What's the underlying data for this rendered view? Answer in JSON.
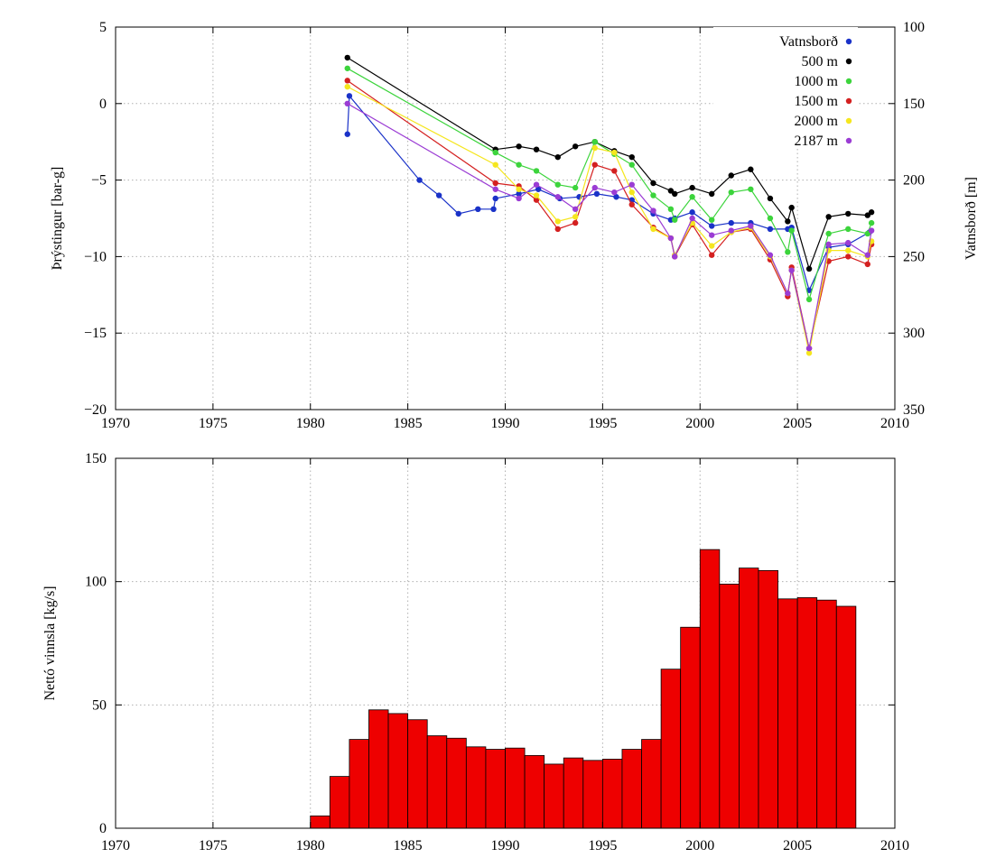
{
  "chart_data": [
    {
      "type": "line",
      "title": "",
      "xlabel": "",
      "ylabel": "Þrýstingur [bar-g]",
      "y2label": "Vatnsborð [m]",
      "xlim": [
        1970,
        2010
      ],
      "ylim": [
        -20,
        5
      ],
      "y2lim": [
        350,
        100
      ],
      "y2_reversed": true,
      "grid": true,
      "legend_position": "top-right",
      "x_ticks": [
        "1970",
        "1975",
        "1980",
        "1985",
        "1990",
        "1995",
        "2000",
        "2005",
        "2010"
      ],
      "y_ticks": [
        "5",
        "0",
        "−5",
        "−10",
        "−15",
        "−20"
      ],
      "y2_ticks": [
        "100",
        "150",
        "200",
        "250",
        "300",
        "350"
      ],
      "series": [
        {
          "name": "Vatnsborð",
          "axis": "y2",
          "color": "#1a32c8",
          "points": [
            [
              1981.9,
              170
            ],
            [
              1982.0,
              145
            ],
            [
              1985.6,
              200
            ],
            [
              1986.6,
              210
            ],
            [
              1987.6,
              222
            ],
            [
              1988.6,
              219
            ],
            [
              1989.4,
              219
            ],
            [
              1989.5,
              212
            ],
            [
              1990.7,
              209
            ],
            [
              1991.7,
              206
            ],
            [
              1992.8,
              212
            ],
            [
              1993.8,
              211
            ],
            [
              1994.7,
              209
            ],
            [
              1995.7,
              211
            ],
            [
              1996.5,
              213
            ],
            [
              1997.6,
              222
            ],
            [
              1998.5,
              226
            ],
            [
              1998.7,
              225
            ],
            [
              1999.6,
              221
            ],
            [
              2000.6,
              230
            ],
            [
              2001.6,
              228
            ],
            [
              2002.6,
              228
            ],
            [
              2003.6,
              232
            ],
            [
              2004.5,
              232
            ],
            [
              2004.7,
              231
            ],
            [
              2005.6,
              272
            ],
            [
              2006.6,
              244
            ],
            [
              2007.6,
              242
            ],
            [
              2008.7,
              234
            ]
          ]
        },
        {
          "name": "500 m",
          "axis": "y",
          "color": "#000000",
          "points": [
            [
              1981.9,
              3.0
            ],
            [
              1989.5,
              -3.0
            ],
            [
              1990.7,
              -2.8
            ],
            [
              1991.6,
              -3.0
            ],
            [
              1992.7,
              -3.5
            ],
            [
              1993.6,
              -2.8
            ],
            [
              1994.6,
              -2.5
            ],
            [
              1995.6,
              -3.1
            ],
            [
              1996.5,
              -3.5
            ],
            [
              1997.6,
              -5.2
            ],
            [
              1998.5,
              -5.7
            ],
            [
              1998.7,
              -5.9
            ],
            [
              1999.6,
              -5.5
            ],
            [
              2000.6,
              -5.9
            ],
            [
              2001.6,
              -4.7
            ],
            [
              2002.6,
              -4.3
            ],
            [
              2003.6,
              -6.2
            ],
            [
              2004.5,
              -7.7
            ],
            [
              2004.7,
              -6.8
            ],
            [
              2005.6,
              -10.8
            ],
            [
              2006.6,
              -7.4
            ],
            [
              2007.6,
              -7.2
            ],
            [
              2008.6,
              -7.3
            ],
            [
              2008.8,
              -7.1
            ]
          ]
        },
        {
          "name": "1000 m",
          "axis": "y",
          "color": "#3cd43c",
          "points": [
            [
              1981.9,
              2.3
            ],
            [
              1989.5,
              -3.2
            ],
            [
              1990.7,
              -4.0
            ],
            [
              1991.6,
              -4.4
            ],
            [
              1992.7,
              -5.3
            ],
            [
              1993.6,
              -5.5
            ],
            [
              1994.6,
              -2.5
            ],
            [
              1995.6,
              -3.3
            ],
            [
              1996.5,
              -4.0
            ],
            [
              1997.6,
              -6.0
            ],
            [
              1998.5,
              -6.9
            ],
            [
              1998.7,
              -7.6
            ],
            [
              1999.6,
              -6.1
            ],
            [
              2000.6,
              -7.6
            ],
            [
              2001.6,
              -5.8
            ],
            [
              2002.6,
              -5.6
            ],
            [
              2003.6,
              -7.5
            ],
            [
              2004.5,
              -9.7
            ],
            [
              2004.7,
              -8.3
            ],
            [
              2005.6,
              -12.8
            ],
            [
              2006.6,
              -8.5
            ],
            [
              2007.6,
              -8.2
            ],
            [
              2008.6,
              -8.5
            ],
            [
              2008.8,
              -7.8
            ]
          ]
        },
        {
          "name": "1500 m",
          "axis": "y",
          "color": "#d42020",
          "points": [
            [
              1981.9,
              1.5
            ],
            [
              1989.5,
              -5.2
            ],
            [
              1990.7,
              -5.4
            ],
            [
              1991.6,
              -6.3
            ],
            [
              1992.7,
              -8.2
            ],
            [
              1993.6,
              -7.8
            ],
            [
              1994.6,
              -4.0
            ],
            [
              1995.6,
              -4.4
            ],
            [
              1996.5,
              -6.6
            ],
            [
              1997.6,
              -8.1
            ],
            [
              1998.5,
              -8.8
            ],
            [
              1998.7,
              -10.0
            ],
            [
              1999.6,
              -7.9
            ],
            [
              2000.6,
              -9.9
            ],
            [
              2001.6,
              -8.4
            ],
            [
              2002.6,
              -8.2
            ],
            [
              2003.6,
              -10.2
            ],
            [
              2004.5,
              -12.6
            ],
            [
              2004.7,
              -10.7
            ],
            [
              2005.6,
              -16.0
            ],
            [
              2006.6,
              -10.3
            ],
            [
              2007.6,
              -10.0
            ],
            [
              2008.6,
              -10.5
            ],
            [
              2008.8,
              -9.2
            ]
          ]
        },
        {
          "name": "2000 m",
          "axis": "y",
          "color": "#f5e61e",
          "points": [
            [
              1981.9,
              1.1
            ],
            [
              1989.5,
              -4.0
            ],
            [
              1990.7,
              -5.6
            ],
            [
              1991.6,
              -6.0
            ],
            [
              1992.7,
              -7.7
            ],
            [
              1993.6,
              -7.4
            ],
            [
              1994.6,
              -2.9
            ],
            [
              1995.6,
              -3.2
            ],
            [
              1996.5,
              -5.8
            ],
            [
              1997.6,
              -8.2
            ],
            [
              1998.5,
              -8.8
            ],
            [
              1998.7,
              -9.9
            ],
            [
              1999.6,
              -7.8
            ],
            [
              2000.6,
              -9.3
            ],
            [
              2001.6,
              -8.4
            ],
            [
              2002.6,
              -8.1
            ],
            [
              2003.6,
              -10.0
            ],
            [
              2004.5,
              -12.4
            ],
            [
              2004.7,
              -10.9
            ],
            [
              2005.6,
              -16.3
            ],
            [
              2006.6,
              -9.6
            ],
            [
              2007.6,
              -9.6
            ],
            [
              2008.6,
              -10.0
            ],
            [
              2008.8,
              -9.0
            ]
          ]
        },
        {
          "name": "2187 m",
          "axis": "y",
          "color": "#9b3cd4",
          "points": [
            [
              1981.9,
              0.0
            ],
            [
              1989.5,
              -5.6
            ],
            [
              1990.7,
              -6.2
            ],
            [
              1991.6,
              -5.3
            ],
            [
              1992.7,
              -6.1
            ],
            [
              1993.6,
              -6.9
            ],
            [
              1994.6,
              -5.5
            ],
            [
              1995.6,
              -5.8
            ],
            [
              1996.5,
              -5.3
            ],
            [
              1997.6,
              -7.0
            ],
            [
              1998.5,
              -8.8
            ],
            [
              1998.7,
              -10.0
            ],
            [
              1999.6,
              -7.5
            ],
            [
              2000.6,
              -8.6
            ],
            [
              2001.6,
              -8.3
            ],
            [
              2002.6,
              -8.0
            ],
            [
              2003.6,
              -9.9
            ],
            [
              2004.5,
              -12.4
            ],
            [
              2004.7,
              -10.9
            ],
            [
              2005.6,
              -16.0
            ],
            [
              2006.6,
              -9.2
            ],
            [
              2007.6,
              -9.1
            ],
            [
              2008.6,
              -9.9
            ],
            [
              2008.8,
              -8.3
            ]
          ]
        }
      ]
    },
    {
      "type": "bar",
      "title": "",
      "xlabel": "",
      "ylabel": "Nettó vinnsla [kg/s]",
      "xlim": [
        1970,
        2010
      ],
      "ylim": [
        0,
        150
      ],
      "grid": true,
      "bar_color": "#ee0000",
      "x_ticks": [
        "1970",
        "1975",
        "1980",
        "1985",
        "1990",
        "1995",
        "2000",
        "2005",
        "2010"
      ],
      "y_ticks": [
        "0",
        "50",
        "100",
        "150"
      ],
      "bars": [
        {
          "start": 1980,
          "value": 5
        },
        {
          "start": 1981,
          "value": 21
        },
        {
          "start": 1982,
          "value": 36
        },
        {
          "start": 1983,
          "value": 48
        },
        {
          "start": 1984,
          "value": 46.5
        },
        {
          "start": 1985,
          "value": 44
        },
        {
          "start": 1986,
          "value": 37.5
        },
        {
          "start": 1987,
          "value": 36.5
        },
        {
          "start": 1988,
          "value": 33
        },
        {
          "start": 1989,
          "value": 32
        },
        {
          "start": 1990,
          "value": 32.5
        },
        {
          "start": 1991,
          "value": 29.5
        },
        {
          "start": 1992,
          "value": 26
        },
        {
          "start": 1993,
          "value": 28.5
        },
        {
          "start": 1994,
          "value": 27.5
        },
        {
          "start": 1995,
          "value": 28
        },
        {
          "start": 1996,
          "value": 32
        },
        {
          "start": 1997,
          "value": 36
        },
        {
          "start": 1998,
          "value": 64.5
        },
        {
          "start": 1999,
          "value": 81.5
        },
        {
          "start": 2000,
          "value": 113
        },
        {
          "start": 2001,
          "value": 99
        },
        {
          "start": 2002,
          "value": 105.5
        },
        {
          "start": 2003,
          "value": 104.5
        },
        {
          "start": 2004,
          "value": 93
        },
        {
          "start": 2005,
          "value": 93.5
        },
        {
          "start": 2006,
          "value": 92.5
        },
        {
          "start": 2007,
          "value": 90
        }
      ]
    }
  ]
}
